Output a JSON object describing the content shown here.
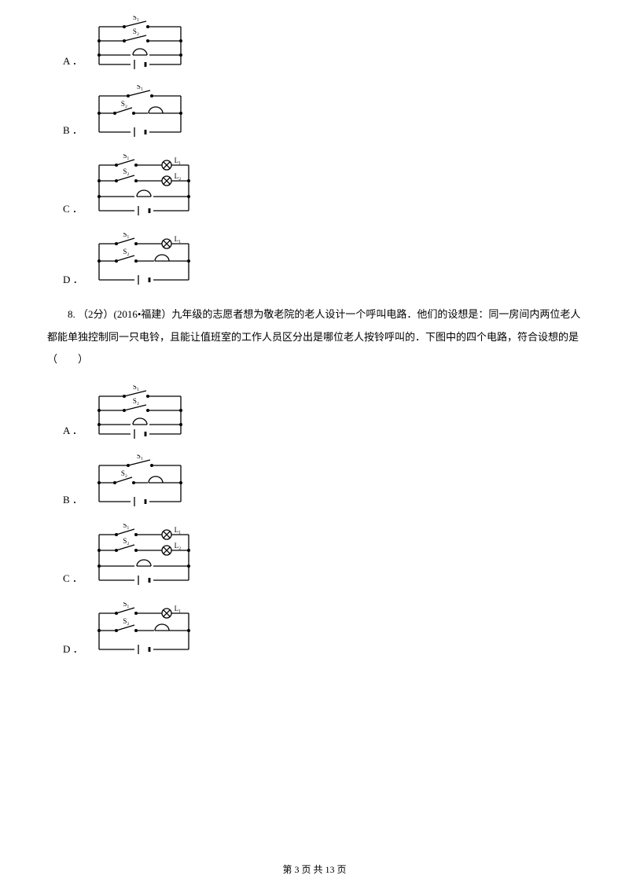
{
  "options_top": {
    "A": {
      "label": "A ．",
      "s1": "S₁",
      "s2": "S₂",
      "l1": "",
      "l2": "",
      "circuit_type": "A"
    },
    "B": {
      "label": "B ．",
      "s1": "S₁",
      "s2": "S₂",
      "l1": "",
      "l2": "",
      "circuit_type": "B"
    },
    "C": {
      "label": "C ．",
      "s1": "S₁",
      "s2": "S₂",
      "l1": "L₁",
      "l2": "L₂",
      "circuit_type": "C"
    },
    "D": {
      "label": "D ．",
      "s1": "S₁",
      "s2": "S₂",
      "l1": "L₁",
      "l2": "",
      "circuit_type": "D"
    }
  },
  "question8": {
    "header": "8.  （2分）(2016•福建）九年级的志愿者想为敬老院的老人设计一个呼叫电路．他们的设想是：同一房间内两位老人都能单独控制同一只电铃，且能让值班室的工作人员区分出是哪位老人按铃呼叫的．下图中的四个电路，符合设想的是（　　）"
  },
  "options_bottom": {
    "A": {
      "label": "A ．",
      "s1": "S₁",
      "s2": "S₂",
      "l1": "",
      "l2": "",
      "circuit_type": "A"
    },
    "B": {
      "label": "B ．",
      "s1": "S₁",
      "s2": "S₂",
      "l1": "",
      "l2": "",
      "circuit_type": "B"
    },
    "C": {
      "label": "C ．",
      "s1": "S₁",
      "s2": "S₂",
      "l1": "L₁",
      "l2": "L₂",
      "circuit_type": "C"
    },
    "D": {
      "label": "D ．",
      "s1": "S₁",
      "s2": "S₂",
      "l1": "L₁",
      "l2": "",
      "circuit_type": "D"
    }
  },
  "footer": {
    "text": "第 3 页 共 13 页"
  },
  "style": {
    "stroke": "#000000",
    "stroke_width": 1.3,
    "font_label": "9px",
    "font_option": "13px"
  }
}
